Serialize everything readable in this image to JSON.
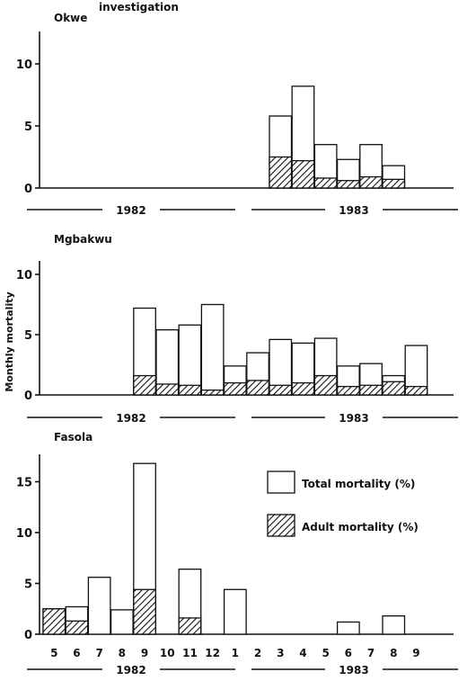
{
  "figure": {
    "top_caption": "investigation",
    "ylabel": "Monthly mortality",
    "legend": {
      "total_label": "Total mortality (%)",
      "adult_label": "Adult mortality (%)"
    }
  },
  "chart_data": [
    {
      "type": "bar",
      "title": "Okwe",
      "ylim": [
        0,
        12
      ],
      "yticks": [
        0,
        5,
        10
      ],
      "months": [
        "5",
        "6",
        "7",
        "8",
        "9",
        "10",
        "11",
        "12",
        "1",
        "2",
        "3",
        "4",
        "5",
        "6",
        "7",
        "8",
        "9"
      ],
      "years": [
        "1982",
        "1983"
      ],
      "series": [
        {
          "name": "Total mortality (%)",
          "values": [
            null,
            null,
            null,
            null,
            null,
            null,
            null,
            null,
            null,
            null,
            5.8,
            8.2,
            3.5,
            2.3,
            3.5,
            1.8,
            null
          ]
        },
        {
          "name": "Adult mortality (%)",
          "values": [
            null,
            null,
            null,
            null,
            null,
            null,
            null,
            null,
            null,
            null,
            2.5,
            2.2,
            0.8,
            0.6,
            0.9,
            0.7,
            null
          ]
        }
      ]
    },
    {
      "type": "bar",
      "title": "Mgbakwu",
      "ylim": [
        0,
        12
      ],
      "yticks": [
        0,
        5,
        10
      ],
      "months": [
        "5",
        "6",
        "7",
        "8",
        "9",
        "10",
        "11",
        "12",
        "1",
        "2",
        "3",
        "4",
        "5",
        "6",
        "7",
        "8",
        "9"
      ],
      "years": [
        "1982",
        "1983"
      ],
      "series": [
        {
          "name": "Total mortality (%)",
          "values": [
            null,
            null,
            null,
            null,
            7.2,
            5.4,
            5.8,
            7.5,
            2.4,
            3.5,
            4.6,
            4.3,
            4.7,
            2.4,
            2.6,
            1.6,
            4.1
          ]
        },
        {
          "name": "Adult mortality (%)",
          "values": [
            null,
            null,
            null,
            null,
            1.6,
            0.9,
            0.8,
            0.4,
            1.0,
            1.2,
            0.8,
            1.0,
            1.6,
            0.7,
            0.8,
            1.1,
            0.7
          ]
        }
      ]
    },
    {
      "type": "bar",
      "title": "Fasola",
      "ylim": [
        0,
        17.5
      ],
      "yticks": [
        0,
        5,
        10,
        15
      ],
      "months": [
        "5",
        "6",
        "7",
        "8",
        "9",
        "10",
        "11",
        "12",
        "1",
        "2",
        "3",
        "4",
        "5",
        "6",
        "7",
        "8",
        "9"
      ],
      "years": [
        "1982",
        "1983"
      ],
      "series": [
        {
          "name": "Total mortality (%)",
          "values": [
            2.5,
            2.7,
            5.6,
            2.4,
            16.8,
            null,
            6.4,
            null,
            4.4,
            null,
            null,
            null,
            null,
            1.2,
            null,
            1.8,
            null
          ]
        },
        {
          "name": "Adult mortality (%)",
          "values": [
            2.5,
            1.3,
            0,
            0,
            4.4,
            null,
            1.6,
            null,
            0,
            null,
            null,
            null,
            null,
            0,
            null,
            0,
            null
          ]
        }
      ]
    }
  ]
}
